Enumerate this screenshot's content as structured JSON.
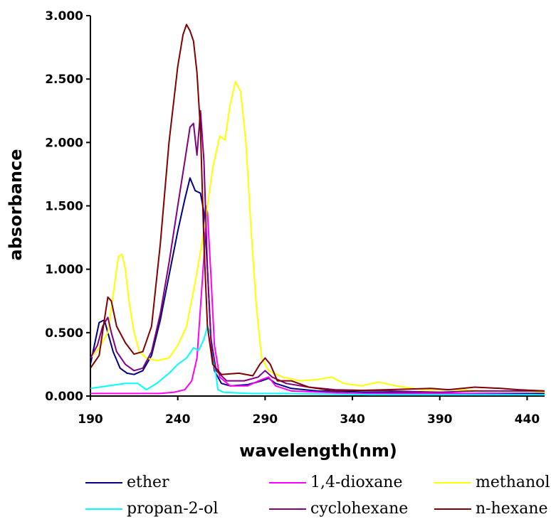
{
  "chart_data": {
    "type": "line",
    "xlabel": "wavelength(nm)",
    "ylabel": "absorbance",
    "xlim": [
      190,
      450
    ],
    "ylim": [
      0,
      3
    ],
    "x_ticks": [
      "190",
      "240",
      "290",
      "340",
      "390",
      "440"
    ],
    "x_tick_values": [
      190,
      240,
      290,
      340,
      390,
      440
    ],
    "y_ticks": [
      "0.000",
      "0.500",
      "1.000",
      "1.500",
      "2.000",
      "2.500",
      "3.000"
    ],
    "y_tick_values": [
      0,
      0.5,
      1,
      1.5,
      2,
      2.5,
      3
    ],
    "grid": false,
    "legend_position": "bottom",
    "series": [
      {
        "name": "ether",
        "color": "#000080",
        "points": [
          [
            190,
            0.25
          ],
          [
            193,
            0.45
          ],
          [
            195,
            0.58
          ],
          [
            198,
            0.6
          ],
          [
            200,
            0.5
          ],
          [
            203,
            0.35
          ],
          [
            207,
            0.22
          ],
          [
            211,
            0.18
          ],
          [
            215,
            0.17
          ],
          [
            220,
            0.2
          ],
          [
            225,
            0.32
          ],
          [
            230,
            0.6
          ],
          [
            235,
            0.95
          ],
          [
            240,
            1.3
          ],
          [
            244,
            1.55
          ],
          [
            247,
            1.72
          ],
          [
            250,
            1.62
          ],
          [
            253,
            1.6
          ],
          [
            255,
            1.45
          ],
          [
            257,
            1.0
          ],
          [
            259,
            0.45
          ],
          [
            261,
            0.2
          ],
          [
            265,
            0.1
          ],
          [
            270,
            0.08
          ],
          [
            280,
            0.09
          ],
          [
            288,
            0.12
          ],
          [
            292,
            0.14
          ],
          [
            296,
            0.1
          ],
          [
            305,
            0.06
          ],
          [
            320,
            0.04
          ],
          [
            350,
            0.03
          ],
          [
            400,
            0.02
          ],
          [
            450,
            0.02
          ]
        ]
      },
      {
        "name": "1,4-dioxane",
        "color": "#ff00ff",
        "points": [
          [
            190,
            0.02
          ],
          [
            200,
            0.02
          ],
          [
            220,
            0.02
          ],
          [
            230,
            0.02
          ],
          [
            238,
            0.03
          ],
          [
            244,
            0.05
          ],
          [
            248,
            0.12
          ],
          [
            251,
            0.3
          ],
          [
            253,
            0.7
          ],
          [
            255,
            1.1
          ],
          [
            256,
            1.5
          ],
          [
            257,
            1.45
          ],
          [
            259,
            0.95
          ],
          [
            261,
            0.4
          ],
          [
            264,
            0.15
          ],
          [
            270,
            0.08
          ],
          [
            280,
            0.08
          ],
          [
            288,
            0.13
          ],
          [
            292,
            0.15
          ],
          [
            296,
            0.08
          ],
          [
            305,
            0.04
          ],
          [
            340,
            0.02
          ],
          [
            400,
            0.02
          ],
          [
            450,
            0.01
          ]
        ]
      },
      {
        "name": "methanol",
        "color": "#ffff00",
        "points": [
          [
            190,
            0.3
          ],
          [
            195,
            0.38
          ],
          [
            200,
            0.5
          ],
          [
            203,
            0.8
          ],
          [
            206,
            1.1
          ],
          [
            208,
            1.12
          ],
          [
            210,
            1.0
          ],
          [
            212,
            0.75
          ],
          [
            215,
            0.5
          ],
          [
            218,
            0.35
          ],
          [
            222,
            0.3
          ],
          [
            228,
            0.28
          ],
          [
            235,
            0.3
          ],
          [
            240,
            0.4
          ],
          [
            245,
            0.55
          ],
          [
            250,
            0.9
          ],
          [
            255,
            1.3
          ],
          [
            260,
            1.8
          ],
          [
            264,
            2.05
          ],
          [
            267,
            2.02
          ],
          [
            270,
            2.3
          ],
          [
            273,
            2.48
          ],
          [
            276,
            2.4
          ],
          [
            279,
            2.0
          ],
          [
            282,
            1.3
          ],
          [
            285,
            0.7
          ],
          [
            288,
            0.3
          ],
          [
            292,
            0.2
          ],
          [
            300,
            0.15
          ],
          [
            310,
            0.12
          ],
          [
            320,
            0.13
          ],
          [
            328,
            0.15
          ],
          [
            335,
            0.1
          ],
          [
            345,
            0.08
          ],
          [
            355,
            0.11
          ],
          [
            365,
            0.08
          ],
          [
            380,
            0.05
          ],
          [
            400,
            0.05
          ],
          [
            420,
            0.04
          ],
          [
            440,
            0.04
          ],
          [
            450,
            0.03
          ]
        ]
      },
      {
        "name": "propan-2-ol",
        "color": "#00ffff",
        "points": [
          [
            190,
            0.06
          ],
          [
            200,
            0.08
          ],
          [
            210,
            0.1
          ],
          [
            217,
            0.1
          ],
          [
            222,
            0.05
          ],
          [
            228,
            0.1
          ],
          [
            235,
            0.18
          ],
          [
            240,
            0.25
          ],
          [
            245,
            0.3
          ],
          [
            249,
            0.38
          ],
          [
            252,
            0.36
          ],
          [
            255,
            0.45
          ],
          [
            257,
            0.55
          ],
          [
            259,
            0.48
          ],
          [
            261,
            0.25
          ],
          [
            263,
            0.05
          ],
          [
            266,
            0.03
          ],
          [
            280,
            0.02
          ],
          [
            300,
            0.02
          ],
          [
            350,
            0.01
          ],
          [
            400,
            0.01
          ],
          [
            450,
            0.01
          ]
        ]
      },
      {
        "name": "cyclohexane",
        "color": "#800080",
        "points": [
          [
            190,
            0.3
          ],
          [
            194,
            0.4
          ],
          [
            197,
            0.55
          ],
          [
            200,
            0.62
          ],
          [
            202,
            0.5
          ],
          [
            205,
            0.35
          ],
          [
            210,
            0.25
          ],
          [
            215,
            0.2
          ],
          [
            220,
            0.22
          ],
          [
            225,
            0.35
          ],
          [
            230,
            0.65
          ],
          [
            235,
            1.05
          ],
          [
            240,
            1.5
          ],
          [
            244,
            1.85
          ],
          [
            247,
            2.12
          ],
          [
            249,
            2.15
          ],
          [
            251,
            1.9
          ],
          [
            253,
            2.25
          ],
          [
            255,
            1.85
          ],
          [
            257,
            1.0
          ],
          [
            259,
            0.45
          ],
          [
            262,
            0.2
          ],
          [
            268,
            0.12
          ],
          [
            278,
            0.12
          ],
          [
            286,
            0.15
          ],
          [
            290,
            0.2
          ],
          [
            294,
            0.15
          ],
          [
            302,
            0.1
          ],
          [
            315,
            0.07
          ],
          [
            330,
            0.05
          ],
          [
            360,
            0.04
          ],
          [
            390,
            0.03
          ],
          [
            410,
            0.04
          ],
          [
            430,
            0.04
          ],
          [
            450,
            0.04
          ]
        ]
      },
      {
        "name": "n-hexane",
        "color": "#800000",
        "points": [
          [
            190,
            0.22
          ],
          [
            195,
            0.32
          ],
          [
            198,
            0.6
          ],
          [
            200,
            0.78
          ],
          [
            202,
            0.75
          ],
          [
            205,
            0.55
          ],
          [
            210,
            0.42
          ],
          [
            215,
            0.33
          ],
          [
            220,
            0.35
          ],
          [
            225,
            0.55
          ],
          [
            230,
            1.2
          ],
          [
            235,
            2.0
          ],
          [
            240,
            2.6
          ],
          [
            243,
            2.85
          ],
          [
            245,
            2.93
          ],
          [
            247,
            2.88
          ],
          [
            249,
            2.8
          ],
          [
            251,
            2.55
          ],
          [
            253,
            2.1
          ],
          [
            255,
            1.2
          ],
          [
            257,
            0.55
          ],
          [
            260,
            0.25
          ],
          [
            265,
            0.17
          ],
          [
            275,
            0.18
          ],
          [
            283,
            0.16
          ],
          [
            287,
            0.25
          ],
          [
            290,
            0.3
          ],
          [
            293,
            0.25
          ],
          [
            297,
            0.12
          ],
          [
            305,
            0.12
          ],
          [
            315,
            0.07
          ],
          [
            330,
            0.04
          ],
          [
            360,
            0.05
          ],
          [
            385,
            0.06
          ],
          [
            395,
            0.05
          ],
          [
            410,
            0.07
          ],
          [
            425,
            0.06
          ],
          [
            435,
            0.05
          ],
          [
            450,
            0.04
          ]
        ]
      }
    ]
  }
}
